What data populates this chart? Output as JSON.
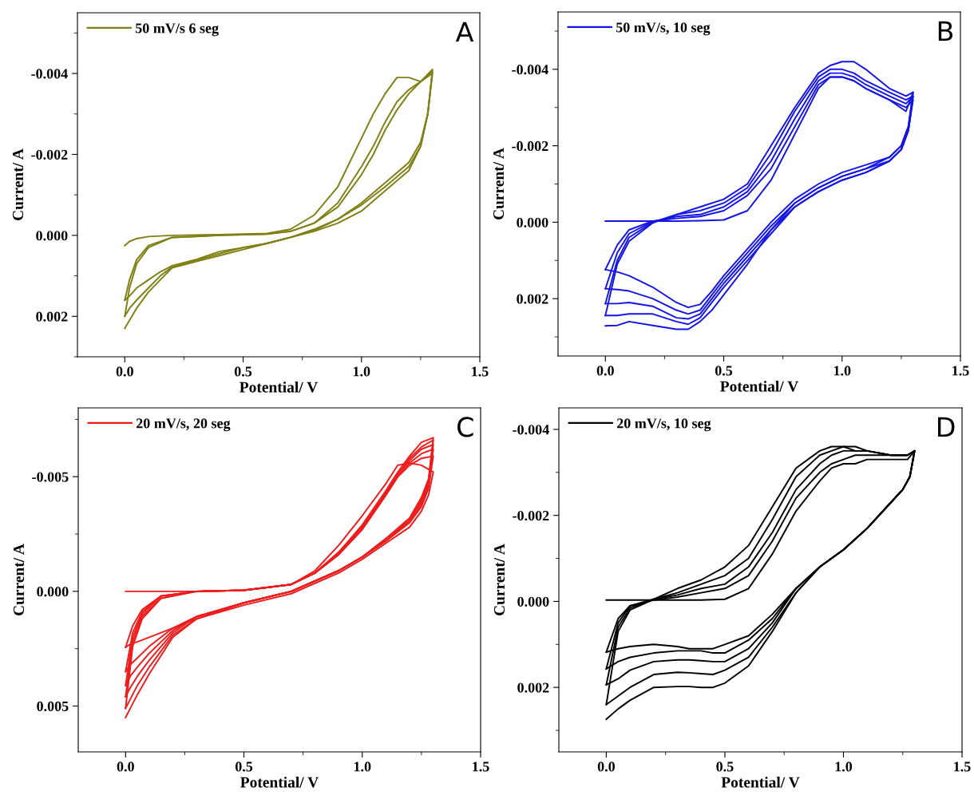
{
  "chart_data": [
    {
      "type": "line",
      "title": "A",
      "xlabel": "Potential/ V",
      "ylabel": "Current/ A",
      "legend": "top left",
      "xlim": [
        -0.2,
        1.5
      ],
      "xticks": [
        {
          "value": 0,
          "label": "0.0"
        },
        {
          "value": 0.5,
          "label": "0.5"
        },
        {
          "value": 1.0,
          "label": "1.0"
        },
        {
          "value": 1.5,
          "label": "1.5"
        }
      ],
      "ylim": [
        0.003,
        -0.0055
      ],
      "yticks": [
        {
          "value": -0.004,
          "label": "-0.004"
        },
        {
          "value": -0.002,
          "label": "-0.002"
        },
        {
          "value": 0,
          "label": "0.000"
        },
        {
          "value": 0.002,
          "label": "0.002"
        }
      ],
      "x": [
        0,
        0.02,
        0.05,
        0.1,
        0.2,
        0.4,
        0.6,
        0.7,
        0.8,
        0.9,
        1.0,
        1.05,
        1.1,
        1.15,
        1.2,
        1.25,
        1.3,
        1.28,
        1.25,
        1.2,
        1.1,
        1.0,
        0.9,
        0.8,
        0.7,
        0.6,
        0.5,
        0.4,
        0.3,
        0.2,
        0.15,
        0.1,
        0.05,
        0.02,
        0.0
      ],
      "series": [
        {
          "name": "50 mV/s 6 seg",
          "color": "#7f7f14",
          "values": [
            0.00025,
            0.00015,
            8e-05,
            3e-05,
            0,
            -2e-05,
            -5e-05,
            -0.00015,
            -0.0005,
            -0.0012,
            -0.0024,
            -0.003,
            -0.0035,
            -0.0039,
            -0.0039,
            -0.0038,
            -0.0041,
            -0.003,
            -0.0023,
            -0.0018,
            -0.0013,
            -0.0008,
            -0.0004,
            -0.00015,
            5e-05,
            0.0002,
            0.0003,
            0.0004,
            0.0006,
            0.00075,
            0.0009,
            0.0011,
            0.0013,
            0.0015,
            0.0016
          ]
        },
        {
          "color": "#7f7f14",
          "values": [
            0.0016,
            0.0011,
            0.0006,
            0.00025,
            5e-05,
            0,
            -3e-05,
            -0.0001,
            -0.0003,
            -0.0008,
            -0.0017,
            -0.0022,
            -0.0028,
            -0.0033,
            -0.0036,
            -0.0038,
            -0.004,
            -0.003,
            -0.0022,
            -0.0017,
            -0.0012,
            -0.00075,
            -0.0004,
            -0.00012,
            5e-05,
            0.0002,
            0.0003,
            0.00045,
            0.00062,
            0.00078,
            0.001,
            0.0013,
            0.0016,
            0.0018,
            0.002
          ]
        },
        {
          "color": "#7f7f14",
          "values": [
            0.002,
            0.0013,
            0.0007,
            0.0003,
            5e-05,
            0,
            -3e-05,
            -0.0001,
            -0.0003,
            -0.0007,
            -0.0015,
            -0.002,
            -0.0026,
            -0.0031,
            -0.0035,
            -0.0038,
            -0.00405,
            -0.003,
            -0.0022,
            -0.0016,
            -0.0011,
            -0.0006,
            -0.0003,
            -0.0001,
            5e-05,
            0.0002,
            0.00035,
            0.0005,
            0.00065,
            0.0008,
            0.0011,
            0.0014,
            0.0018,
            0.0021,
            0.0023
          ]
        }
      ]
    },
    {
      "type": "line",
      "title": "B",
      "xlabel": "Potential/ V",
      "ylabel": "Current/ A",
      "legend": "top left",
      "xlim": [
        -0.2,
        1.5
      ],
      "xticks": [
        {
          "value": 0,
          "label": "0.0"
        },
        {
          "value": 0.5,
          "label": "0.5"
        },
        {
          "value": 1.0,
          "label": "1.0"
        },
        {
          "value": 1.5,
          "label": "1.5"
        }
      ],
      "ylim": [
        0.0035,
        -0.0055
      ],
      "yticks": [
        {
          "value": -0.004,
          "label": "-0.004"
        },
        {
          "value": -0.002,
          "label": "-0.002"
        },
        {
          "value": 0,
          "label": "0.000"
        },
        {
          "value": 0.002,
          "label": "0.002"
        }
      ],
      "x": [
        0,
        0.05,
        0.1,
        0.2,
        0.3,
        0.4,
        0.5,
        0.6,
        0.7,
        0.8,
        0.9,
        0.95,
        1.0,
        1.05,
        1.1,
        1.2,
        1.27,
        1.3,
        1.28,
        1.25,
        1.2,
        1.1,
        1.0,
        0.9,
        0.8,
        0.7,
        0.6,
        0.5,
        0.45,
        0.4,
        0.35,
        0.3,
        0.2,
        0.1,
        0.05,
        0.0
      ],
      "series": [
        {
          "name": "50 mV/s, 10 seg",
          "color": "#1414e6",
          "values": [
            -3e-05,
            -3e-05,
            -3e-05,
            -3e-05,
            -3e-05,
            -4e-05,
            -6e-05,
            -0.0003,
            -0.0011,
            -0.0023,
            -0.0035,
            -0.0038,
            -0.0038,
            -0.0037,
            -0.0035,
            -0.0032,
            -0.0029,
            -0.0034,
            -0.0025,
            -0.002,
            -0.0017,
            -0.0015,
            -0.0013,
            -0.001,
            -0.0006,
            0,
            0.0007,
            0.0014,
            0.0018,
            0.00215,
            0.00223,
            0.0021,
            0.0017,
            0.0014,
            0.0013,
            0.00124
          ]
        },
        {
          "color": "#1414e6",
          "values": [
            0.00124,
            0.0006,
            0.0002,
            -3e-05,
            -0.0001,
            -0.00015,
            -0.0003,
            -0.0007,
            -0.0014,
            -0.0025,
            -0.0036,
            -0.0038,
            -0.0038,
            -0.0037,
            -0.0035,
            -0.0032,
            -0.003,
            -0.0032,
            -0.0024,
            -0.0019,
            -0.0016,
            -0.0014,
            -0.0012,
            -0.0009,
            -0.0005,
            0.0001,
            0.0008,
            0.0015,
            0.0019,
            0.0023,
            0.0024,
            0.0023,
            0.002,
            0.0018,
            0.00176,
            0.00174
          ]
        },
        {
          "color": "#1414e6",
          "values": [
            0.00174,
            0.0008,
            0.0003,
            -2e-05,
            -0.00015,
            -0.0002,
            -0.0004,
            -0.0008,
            -0.0016,
            -0.0027,
            -0.0037,
            -0.0039,
            -0.0039,
            -0.0038,
            -0.0036,
            -0.0033,
            -0.0031,
            -0.0033,
            -0.0024,
            -0.0019,
            -0.0016,
            -0.0013,
            -0.0011,
            -0.0008,
            -0.0004,
            0.0002,
            0.0009,
            0.0016,
            0.002,
            0.0024,
            0.00253,
            0.0025,
            0.0022,
            0.0021,
            0.00213,
            0.00213
          ]
        },
        {
          "color": "#1414e6",
          "values": [
            0.00213,
            0.001,
            0.0004,
            0,
            -0.0002,
            -0.0003,
            -0.0005,
            -0.0009,
            -0.0018,
            -0.0029,
            -0.0038,
            -0.004,
            -0.004,
            -0.0039,
            -0.0037,
            -0.0034,
            -0.0032,
            -0.0033,
            -0.0024,
            -0.0019,
            -0.0016,
            -0.0013,
            -0.0011,
            -0.0008,
            -0.0004,
            0.0003,
            0.001,
            0.0017,
            0.0021,
            0.0025,
            0.00267,
            0.0026,
            0.0024,
            0.0024,
            0.00244,
            0.00244
          ]
        },
        {
          "color": "#1414e6",
          "values": [
            0.00244,
            0.0011,
            0.0005,
            2e-05,
            -0.0002,
            -0.0004,
            -0.0006,
            -0.001,
            -0.002,
            -0.003,
            -0.0039,
            -0.0041,
            -0.0042,
            -0.0042,
            -0.004,
            -0.0035,
            -0.0033,
            -0.0034,
            -0.0025,
            -0.002,
            -0.0017,
            -0.0014,
            -0.0012,
            -0.0009,
            -0.0005,
            0.0002,
            0.0011,
            0.0019,
            0.0023,
            0.0026,
            0.0028,
            0.0028,
            0.0027,
            0.0026,
            0.0027,
            0.00271
          ]
        }
      ]
    },
    {
      "type": "line",
      "title": "C",
      "xlabel": "Potential/ V",
      "ylabel": "Current/ A",
      "legend": "top left",
      "xlim": [
        -0.2,
        1.5
      ],
      "xticks": [
        {
          "value": 0,
          "label": "0.0"
        },
        {
          "value": 0.5,
          "label": "0.5"
        },
        {
          "value": 1.0,
          "label": "1.0"
        },
        {
          "value": 1.5,
          "label": "1.5"
        }
      ],
      "ylim": [
        0.007,
        -0.008
      ],
      "yticks": [
        {
          "value": -0.005,
          "label": "-0.005"
        },
        {
          "value": 0,
          "label": "0.000"
        },
        {
          "value": 0.005,
          "label": "0.005"
        }
      ],
      "x": [
        0,
        0.03,
        0.07,
        0.15,
        0.3,
        0.5,
        0.7,
        0.8,
        0.9,
        1.0,
        1.1,
        1.15,
        1.2,
        1.25,
        1.3,
        1.28,
        1.25,
        1.2,
        1.1,
        1.0,
        0.9,
        0.7,
        0.5,
        0.3,
        0.2,
        0.15,
        0.1,
        0.05,
        0.02,
        0.0
      ],
      "series": [
        {
          "name": "20 mV/s, 20 seg",
          "color": "#ee1c1c",
          "values": [
            0,
            0,
            0,
            0,
            0,
            -5e-05,
            -0.0003,
            -0.0009,
            -0.002,
            -0.0033,
            -0.0047,
            -0.0055,
            -0.0056,
            -0.0055,
            -0.0052,
            -0.0042,
            -0.0035,
            -0.0028,
            -0.0021,
            -0.0014,
            -0.0008,
            0.0001,
            0.0006,
            0.0012,
            0.0016,
            0.0018,
            0.002,
            0.0022,
            0.0023,
            0.00244
          ]
        },
        {
          "color": "#ee1c1c",
          "values": [
            0.00244,
            0.0015,
            0.0008,
            0.0002,
            0,
            -5e-05,
            -0.0003,
            -0.0008,
            -0.0016,
            -0.0027,
            -0.0042,
            -0.005,
            -0.0055,
            -0.0058,
            -0.0059,
            -0.0045,
            -0.0037,
            -0.003,
            -0.0022,
            -0.0015,
            -0.0009,
            0,
            0.0005,
            0.0011,
            0.0016,
            0.002,
            0.0024,
            0.0029,
            0.0032,
            0.0035
          ]
        },
        {
          "color": "#ee1c1c",
          "values": [
            0.0035,
            0.0018,
            0.0009,
            0.0002,
            0,
            -5e-05,
            -0.0003,
            -0.0008,
            -0.0016,
            -0.0027,
            -0.0042,
            -0.005,
            -0.0056,
            -0.006,
            -0.0062,
            -0.0046,
            -0.0038,
            -0.003,
            -0.0022,
            -0.0015,
            -0.0009,
            0,
            0.0005,
            0.0011,
            0.0017,
            0.0022,
            0.0027,
            0.0033,
            0.0037,
            0.0041
          ]
        },
        {
          "color": "#ee1c1c",
          "values": [
            0.0041,
            0.002,
            0.001,
            0.0002,
            0,
            -5e-05,
            -0.0003,
            -0.0008,
            -0.0017,
            -0.0028,
            -0.0043,
            -0.0051,
            -0.0057,
            -0.0062,
            -0.0064,
            -0.0047,
            -0.0039,
            -0.0031,
            -0.0022,
            -0.0015,
            -0.0009,
            0,
            0.0005,
            0.0011,
            0.0018,
            0.0024,
            0.003,
            0.0037,
            0.0042,
            0.0046
          ]
        },
        {
          "color": "#ee1c1c",
          "values": [
            0.0046,
            0.0022,
            0.0011,
            0.0003,
            0,
            -5e-05,
            -0.0003,
            -0.0008,
            -0.0017,
            -0.0028,
            -0.0043,
            -0.0051,
            -0.0058,
            -0.0063,
            -0.0066,
            -0.0048,
            -0.004,
            -0.0031,
            -0.0023,
            -0.0015,
            -0.0009,
            0,
            0.0005,
            0.0012,
            0.0019,
            0.0026,
            0.0033,
            0.0041,
            0.0047,
            0.0051
          ]
        },
        {
          "color": "#ee1c1c",
          "values": [
            0.0051,
            0.0024,
            0.0012,
            0.0003,
            0,
            -5e-05,
            -0.0003,
            -0.0008,
            -0.0017,
            -0.0029,
            -0.0044,
            -0.0052,
            -0.0059,
            -0.0065,
            -0.0067,
            -0.0049,
            -0.0041,
            -0.0032,
            -0.0023,
            -0.0015,
            -0.0009,
            0,
            0.0005,
            0.0012,
            0.002,
            0.0028,
            0.0036,
            0.0045,
            0.0051,
            0.0055
          ]
        }
      ]
    },
    {
      "type": "line",
      "title": "D",
      "xlabel": "Potential/ V",
      "ylabel": "Current/ A",
      "legend": "top left",
      "xlim": [
        -0.2,
        1.5
      ],
      "xticks": [
        {
          "value": 0,
          "label": "0.0"
        },
        {
          "value": 0.5,
          "label": "0.5"
        },
        {
          "value": 1.0,
          "label": "1.0"
        },
        {
          "value": 1.5,
          "label": "1.5"
        }
      ],
      "ylim": [
        0.0035,
        -0.0045
      ],
      "yticks": [
        {
          "value": -0.004,
          "label": "-0.004"
        },
        {
          "value": -0.002,
          "label": "-0.002"
        },
        {
          "value": 0,
          "label": "0.000"
        },
        {
          "value": 0.002,
          "label": "0.002"
        }
      ],
      "x": [
        0,
        0.05,
        0.1,
        0.2,
        0.3,
        0.4,
        0.5,
        0.6,
        0.7,
        0.8,
        0.9,
        0.95,
        1.0,
        1.05,
        1.1,
        1.2,
        1.27,
        1.3,
        1.28,
        1.25,
        1.2,
        1.1,
        1.0,
        0.9,
        0.8,
        0.7,
        0.6,
        0.5,
        0.45,
        0.4,
        0.35,
        0.3,
        0.2,
        0.1,
        0.05,
        0.0
      ],
      "series": [
        {
          "name": "20 mV/s, 10 seg",
          "color": "#000000",
          "values": [
            -3e-05,
            -3e-05,
            -3e-05,
            -3e-05,
            -3e-05,
            -3e-05,
            -5e-05,
            -0.0003,
            -0.0011,
            -0.0021,
            -0.0028,
            -0.0031,
            -0.0032,
            -0.0032,
            -0.0033,
            -0.0033,
            -0.0033,
            -0.0035,
            -0.0029,
            -0.0026,
            -0.0023,
            -0.0017,
            -0.0012,
            -0.0008,
            -0.0003,
            0.0003,
            0.0008,
            0.001,
            0.0011,
            0.0011,
            0.0011,
            0.00105,
            0.001,
            0.00105,
            0.0011,
            0.00118
          ]
        },
        {
          "color": "#000000",
          "values": [
            0.00118,
            0.0004,
            0.0001,
            -3e-05,
            -0.0001,
            -0.0002,
            -0.0003,
            -0.0006,
            -0.0014,
            -0.0024,
            -0.003,
            -0.0032,
            -0.0033,
            -0.0034,
            -0.0034,
            -0.0034,
            -0.0034,
            -0.0035,
            -0.0029,
            -0.0026,
            -0.0023,
            -0.0017,
            -0.0012,
            -0.0008,
            -0.0003,
            0.0004,
            0.0009,
            0.0012,
            0.0012,
            0.00115,
            0.00115,
            0.00115,
            0.0012,
            0.0013,
            0.0014,
            0.00157
          ]
        },
        {
          "color": "#000000",
          "values": [
            0.00157,
            0.0005,
            0.0001,
            -5e-05,
            -0.00015,
            -0.0003,
            -0.0004,
            -0.0008,
            -0.0016,
            -0.0026,
            -0.0032,
            -0.0034,
            -0.0035,
            -0.0035,
            -0.0035,
            -0.0034,
            -0.0034,
            -0.0035,
            -0.0029,
            -0.0026,
            -0.0023,
            -0.0017,
            -0.0012,
            -0.0008,
            -0.0003,
            0.0005,
            0.0011,
            0.0014,
            0.0014,
            0.00138,
            0.00136,
            0.00136,
            0.0014,
            0.0016,
            0.0018,
            0.00194
          ]
        },
        {
          "color": "#000000",
          "values": [
            0.00194,
            0.0006,
            0.00015,
            -5e-05,
            -0.0002,
            -0.0004,
            -0.0006,
            -0.001,
            -0.0019,
            -0.0029,
            -0.0034,
            -0.0035,
            -0.0036,
            -0.0036,
            -0.0035,
            -0.0034,
            -0.0034,
            -0.0035,
            -0.0029,
            -0.0026,
            -0.0023,
            -0.0017,
            -0.0012,
            -0.0008,
            -0.0002,
            0.0006,
            0.0013,
            0.0016,
            0.0017,
            0.00168,
            0.00166,
            0.00165,
            0.0017,
            0.002,
            0.0022,
            0.0024
          ]
        },
        {
          "color": "#000000",
          "values": [
            0.0024,
            0.0007,
            0.0002,
            -5e-05,
            -0.0003,
            -0.0005,
            -0.0008,
            -0.0013,
            -0.0022,
            -0.0031,
            -0.0035,
            -0.0036,
            -0.0036,
            -0.0035,
            -0.0035,
            -0.0034,
            -0.0034,
            -0.0035,
            -0.0029,
            -0.0026,
            -0.0023,
            -0.0017,
            -0.0012,
            -0.0008,
            -0.0002,
            0.0007,
            0.0015,
            0.0019,
            0.002,
            0.002,
            0.00198,
            0.00198,
            0.002,
            0.0023,
            0.0025,
            0.00274
          ]
        }
      ]
    }
  ]
}
